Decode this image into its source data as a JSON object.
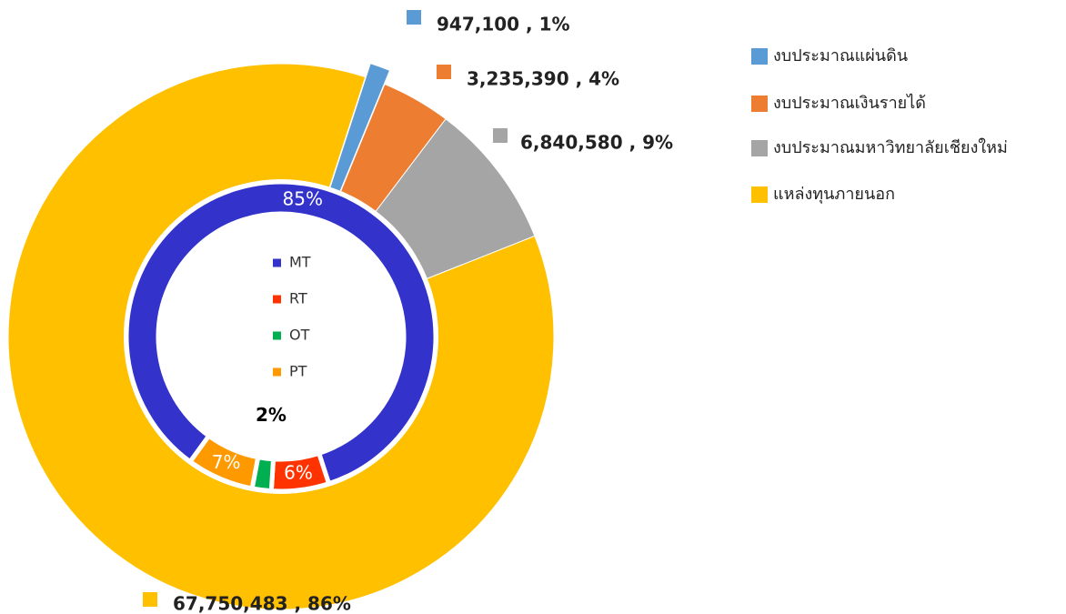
{
  "chart_data": [
    {
      "type": "pie",
      "categories": [
        "งบประมาณแผ่นดิน",
        "งบประมาณเงินรายได้",
        "งบประมาณมหาวิทยาลัยเชียงใหม่",
        "แหล่งทุนภายนอก"
      ],
      "values": [
        947100,
        3235390,
        6840580,
        67750483
      ],
      "value_labels": [
        "947,100 , 1%",
        "3,235,390 , 4%",
        "6,840,580 , 9%",
        "67,750,483 , 86%"
      ],
      "colors": [
        "#5b9bd5",
        "#ed7d31",
        "#a5a5a5",
        "#ffc000"
      ],
      "legend": "right"
    },
    {
      "type": "donut",
      "categories": [
        "MT",
        "RT",
        "OT",
        "PT"
      ],
      "values": [
        85,
        6,
        2,
        7
      ],
      "value_labels": [
        "85%",
        "6%",
        "2%",
        "7%"
      ],
      "colors": [
        "#3333cc",
        "#ff3300",
        "#00b050",
        "#ff9900"
      ],
      "legend": "center"
    }
  ]
}
